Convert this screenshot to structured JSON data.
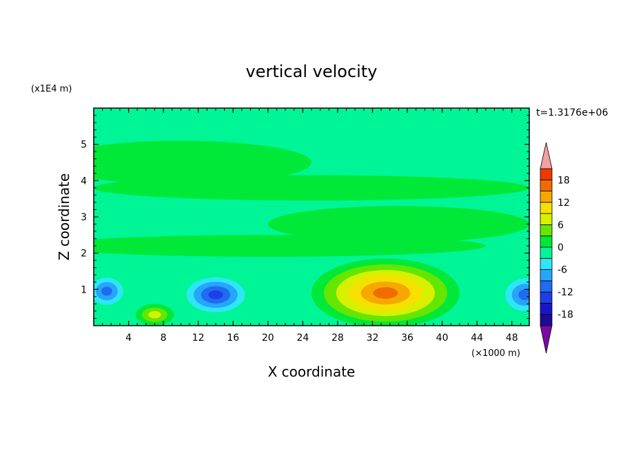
{
  "chart_data": {
    "type": "heatmap",
    "title": "vertical velocity",
    "xlabel": "X coordinate",
    "ylabel": "Z coordinate",
    "x_unit_label": "(×1000 m)",
    "y_unit_label": "(x1E4 m)",
    "time_label": "t=1.3176e+06",
    "xlim": [
      0,
      50
    ],
    "ylim": [
      0,
      6
    ],
    "x_ticks": [
      "4",
      "8",
      "12",
      "16",
      "20",
      "24",
      "28",
      "32",
      "36",
      "40",
      "44",
      "48"
    ],
    "y_ticks": [
      "1",
      "2",
      "3",
      "4",
      "5"
    ],
    "colorbar": {
      "levels": [
        -21,
        -18,
        -15,
        -12,
        -9,
        -6,
        -3,
        0,
        3,
        6,
        9,
        12,
        15,
        18,
        21
      ],
      "tick_labels": [
        "18",
        "12",
        "6",
        "0",
        "-6",
        "-12",
        "-18"
      ],
      "colors": [
        "#7a0aa6",
        "#1e0a96",
        "#1a16c8",
        "#1d3ee8",
        "#1f6cf0",
        "#25a6fa",
        "#2ee6f6",
        "#00f596",
        "#00e838",
        "#64e600",
        "#d6f000",
        "#f6e000",
        "#f6a800",
        "#f06c00",
        "#f03800",
        "#f0a0a0"
      ],
      "over_color": "#f0a0a0",
      "under_color": "#7a0aa6"
    },
    "features": [
      {
        "x": 33.5,
        "z": 0.9,
        "value": 17,
        "shape": "ellipse",
        "rx": 8.5,
        "rz": 0.95
      },
      {
        "x": 14,
        "z": 0.85,
        "value": -13,
        "shape": "ellipse",
        "rx": 4.2,
        "rz": 0.6
      },
      {
        "x": 1.5,
        "z": 0.95,
        "value": -11,
        "shape": "ellipse",
        "rx": 2.5,
        "rz": 0.5
      },
      {
        "x": 49.5,
        "z": 0.85,
        "value": -11,
        "shape": "ellipse",
        "rx": 3,
        "rz": 0.6
      },
      {
        "x": 7,
        "z": 0.3,
        "value": 8,
        "shape": "ellipse",
        "rx": 2.2,
        "rz": 0.3
      },
      {
        "x": 10,
        "z": 4.5,
        "value": 1,
        "shape": "band",
        "rx": 15,
        "rz": 0.6
      },
      {
        "x": 35,
        "z": 2.8,
        "value": 1,
        "shape": "band",
        "rx": 15,
        "rz": 0.5
      },
      {
        "x": 25,
        "z": 3.8,
        "value": 1,
        "shape": "band",
        "rx": 25,
        "rz": 0.35
      },
      {
        "x": 20,
        "z": 2.2,
        "value": 1,
        "shape": "band",
        "rx": 25,
        "rz": 0.3
      }
    ]
  }
}
